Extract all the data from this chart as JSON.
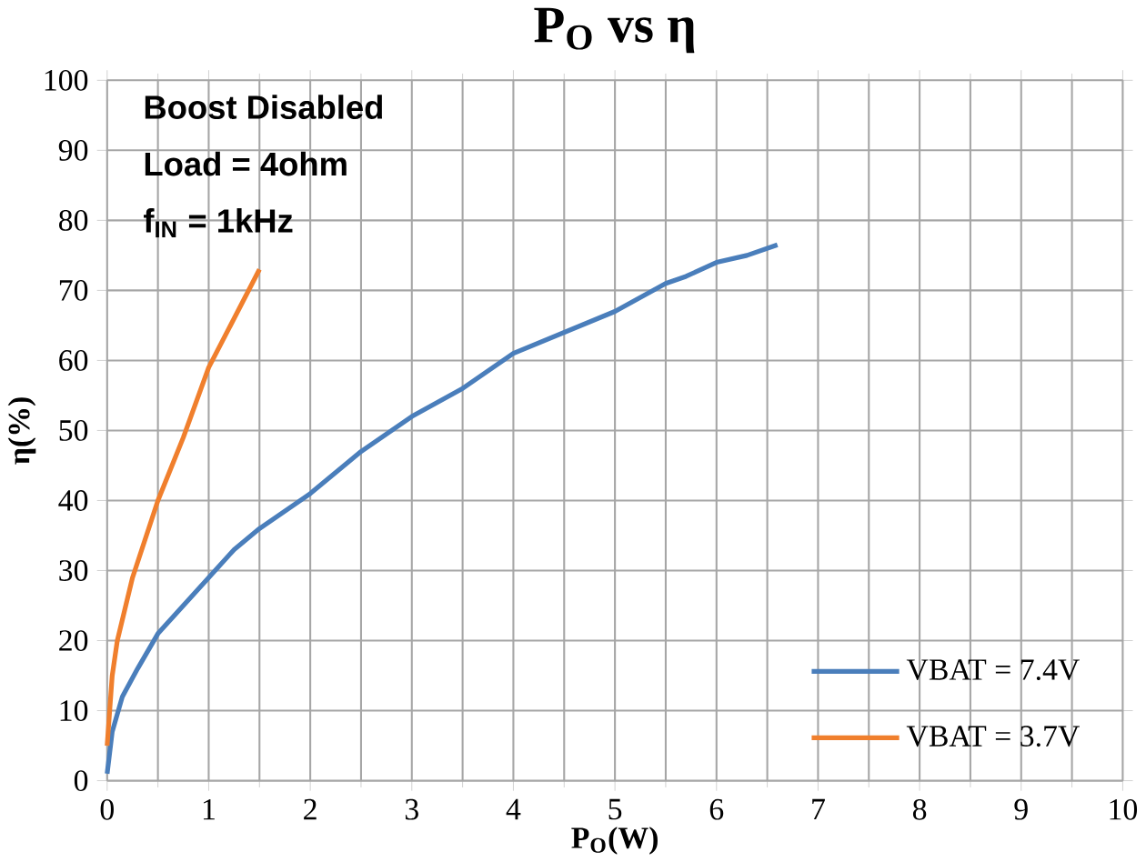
{
  "chart_data": {
    "type": "line",
    "title": "P$_{O}$ vs η",
    "xlabel": "P$_{O}$(W)",
    "ylabel": "η(%)",
    "annotations": [
      "Boost Disabled",
      "Load = 4ohm",
      "f$_{IN}$ = 1kHz"
    ],
    "xlim": [
      0,
      10
    ],
    "xticks": [
      0,
      1,
      2,
      3,
      4,
      5,
      6,
      7,
      8,
      9,
      10
    ],
    "ylim": [
      0,
      100
    ],
    "yticks": [
      0,
      10,
      20,
      30,
      40,
      50,
      60,
      70,
      80,
      90,
      100
    ],
    "grid": true,
    "legend": "bottom right",
    "marker": "none",
    "line_style": "solid",
    "series": [
      {
        "name": "VBAT = 7.4V",
        "color": "#4a7ebb",
        "x": [
          0,
          0.05,
          0.15,
          0.3,
          0.5,
          0.75,
          1,
          1.25,
          1.5,
          2,
          2.5,
          3,
          3.5,
          4,
          4.5,
          5,
          5.5,
          5.7,
          6,
          6.3,
          6.6
        ],
        "values": [
          1,
          7,
          12,
          16,
          21,
          25,
          29,
          33,
          36,
          41,
          47,
          52,
          56,
          61,
          64,
          67,
          71,
          72,
          74,
          75,
          76.5
        ]
      },
      {
        "name": "VBAT = 3.7V",
        "color": "#f07f2d",
        "x": [
          0,
          0.05,
          0.1,
          0.25,
          0.5,
          0.75,
          1,
          1.25,
          1.5
        ],
        "values": [
          5,
          15,
          20,
          29,
          40,
          49,
          59,
          66,
          73
        ]
      }
    ]
  }
}
